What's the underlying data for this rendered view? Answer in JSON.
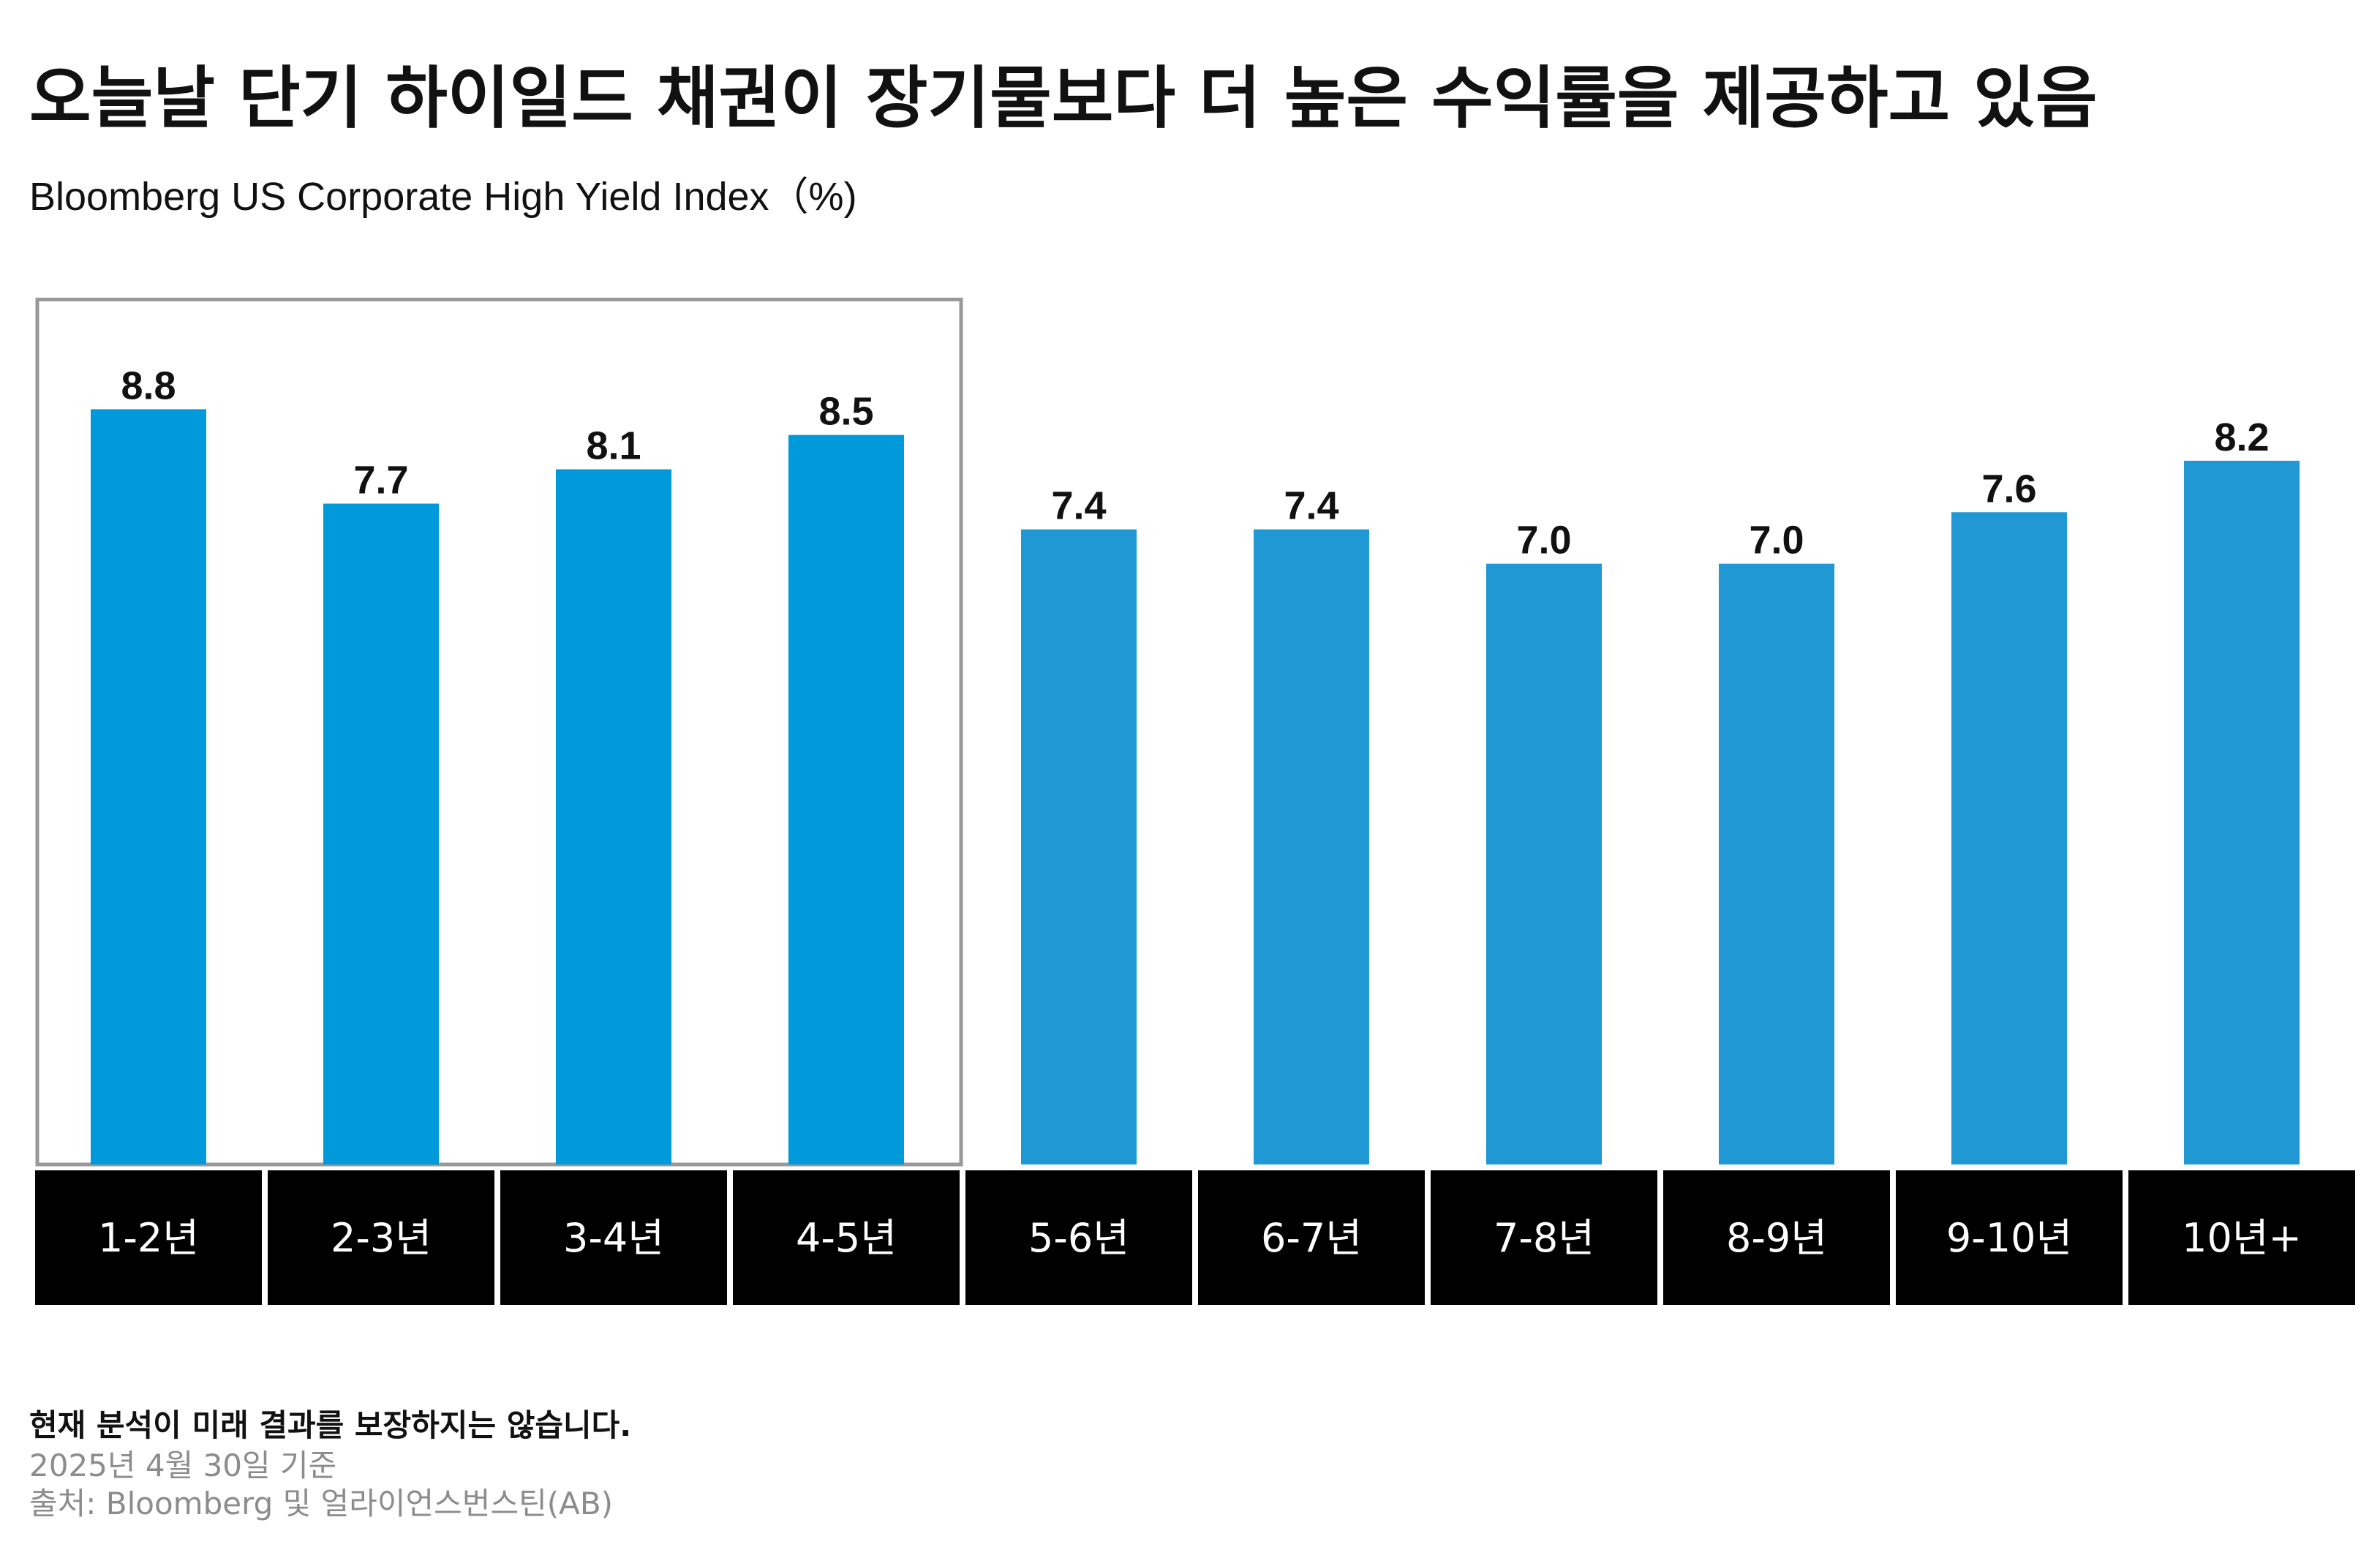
{
  "title": "오늘날 단기 하이일드 채권이 장기물보다 더 높은 수익률을 제공하고 있음",
  "subtitle": "Bloomberg US Corporate High Yield Index（%)",
  "footnote": "현재 분석이 미래 결과를 보장하지는 않습니다.",
  "as_of": "2025년 4월 30일 기준",
  "source": "출처: Bloomberg 및 얼라이언스번스틴(AB)",
  "colors": {
    "bar_highlight": "#009ADB",
    "bar_normal": "#1F98D4",
    "label_band": "#000000",
    "highlight_box": "#999999"
  },
  "chart_data": {
    "type": "bar",
    "categories": [
      "1-2년",
      "2-3년",
      "3-4년",
      "4-5년",
      "5-6년",
      "6-7년",
      "7-8년",
      "8-9년",
      "9-10년",
      "10년+"
    ],
    "values": [
      8.8,
      7.7,
      8.1,
      8.5,
      7.4,
      7.4,
      7.0,
      7.0,
      7.6,
      8.2
    ],
    "value_labels": [
      "8.8",
      "7.7",
      "8.1",
      "8.5",
      "7.4",
      "7.4",
      "7.0",
      "7.0",
      "7.6",
      "8.2"
    ],
    "highlighted_categories": [
      "1-2년",
      "2-3년",
      "3-4년",
      "4-5년"
    ],
    "ylim": [
      0,
      10.5
    ],
    "grid": false,
    "xlabel": "",
    "ylabel": ""
  }
}
